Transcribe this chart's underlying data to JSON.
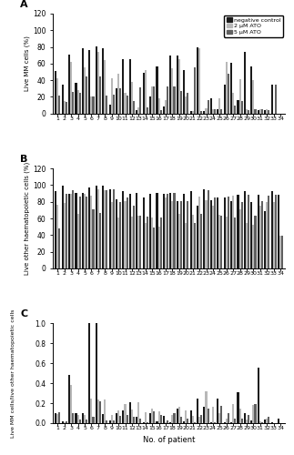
{
  "patients": [
    1,
    2,
    3,
    4,
    5,
    6,
    7,
    8,
    9,
    10,
    11,
    12,
    13,
    14,
    15,
    16,
    17,
    18,
    19,
    20,
    21,
    22,
    23,
    24,
    25,
    26,
    27,
    28,
    29,
    30,
    31,
    32,
    33,
    34
  ],
  "panel_A": {
    "title": "A",
    "ylabel": "Live MM cells (%)",
    "ylim": [
      0,
      120
    ],
    "yticks": [
      0,
      20,
      40,
      60,
      80,
      100,
      120
    ],
    "neg_control": [
      51,
      35,
      71,
      37,
      78,
      76,
      81,
      79,
      11,
      30,
      65,
      65,
      4,
      49,
      21,
      57,
      8,
      70,
      70,
      52,
      3,
      80,
      3,
      18,
      5,
      35,
      61,
      16,
      74,
      57,
      4,
      4,
      35,
      0
    ],
    "ato2": [
      42,
      15,
      62,
      28,
      55,
      20,
      74,
      64,
      42,
      48,
      25,
      38,
      7,
      52,
      32,
      18,
      16,
      54,
      65,
      20,
      3,
      79,
      6,
      5,
      18,
      62,
      25,
      41,
      5,
      40,
      5,
      5,
      0,
      0
    ],
    "ato5": [
      22,
      14,
      26,
      25,
      45,
      20,
      45,
      22,
      23,
      30,
      22,
      15,
      31,
      7,
      32,
      4,
      32,
      33,
      27,
      25,
      55,
      3,
      16,
      5,
      5,
      48,
      10,
      15,
      4,
      5,
      5,
      4,
      35,
      0
    ]
  },
  "panel_B": {
    "title": "B",
    "ylabel": "Live other haematopoietic cells (%)",
    "ylim": [
      0,
      120
    ],
    "yticks": [
      0,
      20,
      40,
      60,
      80,
      100,
      120
    ],
    "neg_control": [
      93,
      99,
      90,
      91,
      91,
      97,
      99,
      99,
      95,
      83,
      93,
      90,
      91,
      85,
      90,
      91,
      90,
      91,
      81,
      90,
      93,
      75,
      95,
      82,
      85,
      85,
      81,
      88,
      93,
      80,
      88,
      69,
      93,
      88
    ],
    "ato2": [
      76,
      79,
      89,
      65,
      90,
      87,
      95,
      94,
      80,
      61,
      81,
      62,
      63,
      55,
      61,
      50,
      85,
      81,
      66,
      55,
      64,
      86,
      82,
      75,
      64,
      62,
      87,
      71,
      55,
      52,
      75,
      80,
      80,
      39
    ],
    "ato5": [
      48,
      90,
      94,
      86,
      86,
      71,
      67,
      94,
      95,
      80,
      85,
      75,
      63,
      62,
      49,
      61,
      90,
      91,
      81,
      81,
      54,
      65,
      94,
      85,
      63,
      86,
      61,
      80,
      88,
      63,
      81,
      87,
      88,
      39
    ]
  },
  "panel_C": {
    "title": "C",
    "ylabel": "Live MM cells/live other haematopoietic cells",
    "xlabel": "No. of patient",
    "ylim": [
      0,
      1.0
    ],
    "yticks": [
      0,
      0.2,
      0.4,
      0.6,
      0.8,
      1.0
    ],
    "neg_control": [
      0.1,
      0.02,
      0.48,
      0.1,
      0.1,
      1.05,
      1.05,
      0.09,
      0.03,
      0.1,
      0.13,
      0.21,
      0.06,
      0.01,
      0.1,
      0.02,
      0.07,
      0.01,
      0.15,
      0.02,
      0.13,
      0.25,
      0.16,
      0.01,
      0.25,
      0.01,
      0.01,
      0.31,
      0.1,
      0.03,
      0.56,
      0.04,
      0.01,
      0.05
    ],
    "ato2": [
      0.09,
      0.01,
      0.38,
      0.08,
      0.08,
      0.25,
      0.24,
      0.24,
      0.08,
      0.13,
      0.19,
      0.14,
      0.21,
      0.11,
      0.15,
      0.12,
      0.01,
      0.08,
      0.16,
      0.13,
      0.07,
      0.06,
      0.32,
      0.16,
      0.1,
      0.05,
      0.19,
      0.15,
      0.04,
      0.18,
      0.02,
      0.05,
      0.0,
      0.0
    ],
    "ato5": [
      0.11,
      0.02,
      0.1,
      0.04,
      0.04,
      0.06,
      0.22,
      0.03,
      0.03,
      0.07,
      0.08,
      0.06,
      0.05,
      0.01,
      0.12,
      0.08,
      0.03,
      0.1,
      0.06,
      0.05,
      0.01,
      0.08,
      0.15,
      0.01,
      0.17,
      0.1,
      0.05,
      0.05,
      0.08,
      0.19,
      0.01,
      0.06,
      0.0,
      0.0
    ]
  },
  "colors": {
    "neg_control": "#1a1a1a",
    "ato2": "#b8b8b8",
    "ato5": "#606060"
  },
  "legend_labels": [
    "negative control",
    "2 μM ATO",
    "5 μM ATO"
  ],
  "bar_width": 0.28
}
